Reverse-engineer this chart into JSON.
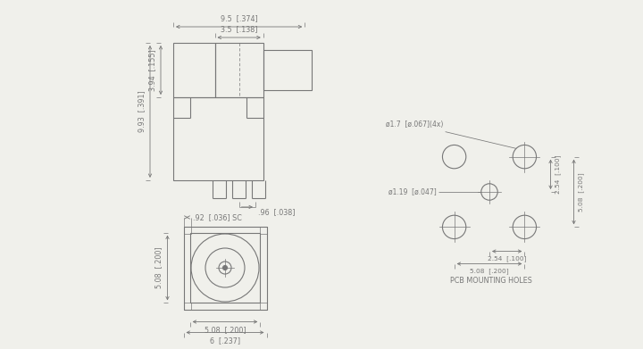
{
  "bg_color": "#f0f0eb",
  "lc": "#777777",
  "dc": "#777777",
  "lw": 0.8,
  "tlw": 0.5,
  "fs": 5.8,
  "labels": {
    "w95": "9.5  [.374]",
    "w35": "3.5  [.138]",
    "h993": "9.93  [.391]",
    "h394": "3.94  [.155]",
    "p96": ".96  [.038]",
    "sq92": ".92  [.036] SC",
    "v508": "5.08  [.200]",
    "h508": "5.08  [.200]",
    "w6": "6  [.237]",
    "d17": "ø1.7  [ø.067](4x)",
    "d119": "ø1.19  [ø.047]",
    "r254a": "2.54  [.100]",
    "r508": "5.08  [.200]",
    "r254b": "2.54  [.100]",
    "r508b": "5.08  [.200]",
    "pcb": "PCB MOUNTING HOLES"
  }
}
